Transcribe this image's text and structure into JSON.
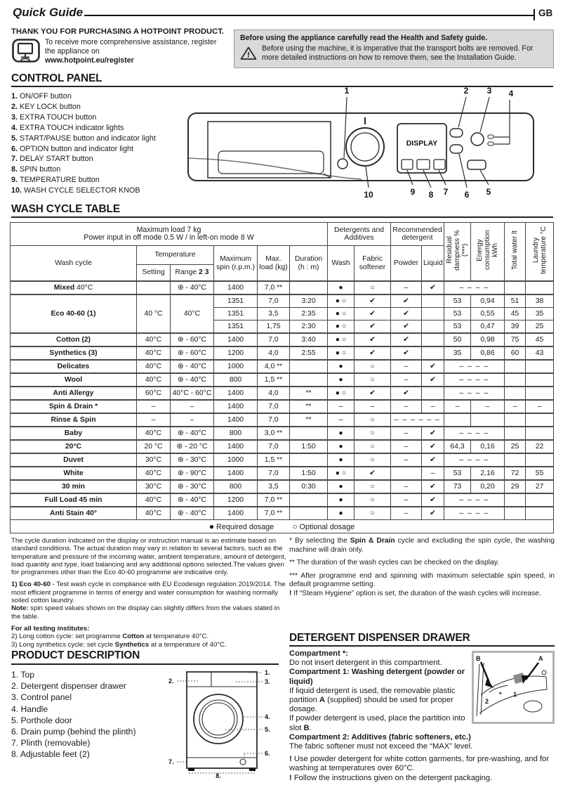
{
  "page": {
    "title": "Quick Guide",
    "lang": "GB"
  },
  "intro": {
    "thanks": "THANK YOU FOR PURCHASING A HOTPOINT PRODUCT.",
    "register_line": "To receive more comprehensive assistance, register the appliance on",
    "register_url": "www.hotpoint.eu/register"
  },
  "safety": {
    "title": "Before using the appliance carefully read the Health and Safety guide.",
    "body": "Before using the machine, it is imperative that the transport bolts are removed. For more detailed instructions on how to remove them, see the Installation Guide."
  },
  "sections": {
    "control_panel": "CONTROL PANEL",
    "wash_table": "WASH CYCLE TABLE",
    "product": "PRODUCT DESCRIPTION",
    "dispenser": "DETERGENT DISPENSER DRAWER"
  },
  "control_panel": {
    "items": [
      {
        "num": "1.",
        "label": "ON/OFF button"
      },
      {
        "num": "2.",
        "label": "KEY LOCK button"
      },
      {
        "num": "3.",
        "label": "EXTRA TOUCH button"
      },
      {
        "num": "4.",
        "label": "EXTRA TOUCH indicator lights"
      },
      {
        "num": "5.",
        "label": "START/PAUSE button and indicator light"
      },
      {
        "num": "6.",
        "label": "OPTION button and indicator light"
      },
      {
        "num": "7.",
        "label": "DELAY START button"
      },
      {
        "num": "8.",
        "label": "SPIN button"
      },
      {
        "num": "9.",
        "label": "TEMPERATURE button"
      },
      {
        "num": "10.",
        "label": "WASH CYCLE SELECTOR KNOB"
      }
    ],
    "display_label": "DISPLAY",
    "callouts": {
      "n1": "1",
      "n2": "2",
      "n3": "3",
      "n4": "4",
      "n5": "5",
      "n6": "6",
      "n7": "7",
      "n8": "8",
      "n9": "9",
      "n10": "10"
    }
  },
  "wash_table": {
    "meta1": "Maximum load 7 kg",
    "meta2": "Power input in off  mode 0.5 W / in left-on mode 8 W",
    "headers": {
      "wash_cycle": "Wash cycle",
      "temperature": "Temperature",
      "setting": "Setting",
      "range_label": "Range ",
      "range_bold": "2 3",
      "max_spin": "Maximum spin (r.p.m.)",
      "max_load": "Max. load (kg)",
      "duration": "Duration (h : m)",
      "detergents": "Detergents and Additives",
      "wash": "Wash",
      "softener": "Fabric softener",
      "recommended": "Recommended detergent",
      "powder": "Powder",
      "liquid": "Liquid",
      "residual": "Residual dampness % (***)",
      "energy": "Energy consumption kWh",
      "water": "Total water lt",
      "laundry": "Laundry temperature °C"
    },
    "rows": [
      {
        "g": true,
        "cells": [
          {
            "t": "Mixed",
            "t2": " 40°C",
            "cls": "name"
          },
          "",
          "⊛ - 40°C",
          "1400",
          "7,0 **",
          "",
          "●",
          "○",
          "–",
          "✔",
          {
            "t": "– – – –",
            "cs": 2,
            "cls": "dash"
          },
          "",
          ""
        ]
      },
      {
        "g": true,
        "cells": [
          {
            "t": "Eco 40-60 (1)",
            "cls": "name",
            "rs": 3
          },
          {
            "t": "40 °C",
            "rs": 3
          },
          {
            "t": "40°C",
            "rs": 3
          },
          "1351",
          "7,0",
          "3:20",
          "● ○",
          "✔",
          "✔",
          "",
          "53",
          "0,94",
          "51",
          "38"
        ]
      },
      {
        "cells": [
          "1351",
          "3,5",
          "2:35",
          "● ○",
          "✔",
          "✔",
          "",
          "53",
          "0,55",
          "45",
          "35"
        ]
      },
      {
        "cells": [
          "1351",
          "1,75",
          "2:30",
          "● ○",
          "✔",
          "✔",
          "",
          "53",
          "0,47",
          "39",
          "25"
        ]
      },
      {
        "g": true,
        "cells": [
          {
            "t": "Cotton (2)",
            "cls": "name"
          },
          "40°C",
          "⊛ - 60°C",
          "1400",
          "7,0",
          "3:40",
          "● ○",
          "✔",
          "✔",
          "",
          "50",
          "0,98",
          "75",
          "45"
        ]
      },
      {
        "g": true,
        "cells": [
          {
            "t": "Synthetics (3)",
            "cls": "name"
          },
          "40°C",
          "⊛ - 60°C",
          "1200",
          "4,0",
          "2:55",
          "● ○",
          "✔",
          "✔",
          "",
          "35",
          "0,86",
          "60",
          "43"
        ]
      },
      {
        "g": true,
        "cells": [
          {
            "t": "Delicates",
            "cls": "name"
          },
          "40°C",
          "⊛ - 40°C",
          "1000",
          "4,0 **",
          "",
          "●",
          "○",
          "–",
          "✔",
          {
            "t": "– – – –",
            "cs": 2,
            "cls": "dash"
          },
          "",
          ""
        ]
      },
      {
        "g": true,
        "cells": [
          {
            "t": "Wool",
            "cls": "name"
          },
          "40°C",
          "⊛ - 40°C",
          "800",
          "1,5 **",
          "",
          "●",
          "○",
          "–",
          "✔",
          {
            "t": "– – – –",
            "cs": 2,
            "cls": "dash"
          },
          "",
          ""
        ]
      },
      {
        "g": true,
        "cells": [
          {
            "t": "Anti Allergy",
            "cls": "name"
          },
          "60°C",
          "40°C - 60°C",
          "1400",
          "4,0",
          "**",
          "● ○",
          "✔",
          "✔",
          "",
          {
            "t": "– – – –",
            "cs": 2,
            "cls": "dash"
          },
          "",
          ""
        ]
      },
      {
        "g": true,
        "cells": [
          {
            "t": "Spin & Drain *",
            "cls": "name"
          },
          "–",
          "–",
          "1400",
          "7,0",
          "**",
          "–",
          "–",
          "–",
          "–",
          "–",
          "–",
          "–",
          "–"
        ]
      },
      {
        "g": true,
        "cells": [
          {
            "t": "Rinse & Spin",
            "cls": "name"
          },
          "–",
          "–",
          "1400",
          "7,0",
          "**",
          "–",
          "○",
          {
            "t": "– – – – – –",
            "cs": 2,
            "cls": "dash"
          },
          "",
          "",
          "",
          ""
        ]
      },
      {
        "g": true,
        "cells": [
          {
            "t": "Baby",
            "cls": "name"
          },
          "40°C",
          "⊛ - 40°C",
          "800",
          "3,0 **",
          "",
          "●",
          "○",
          "–",
          "✔",
          {
            "t": "– – – –",
            "cs": 2,
            "cls": "dash"
          },
          "",
          ""
        ]
      },
      {
        "g": true,
        "cells": [
          {
            "t": "20°C",
            "cls": "name"
          },
          "20 °C",
          "⊛ - 20 °C",
          "1400",
          "7,0",
          "1:50",
          "●",
          "○",
          "–",
          "✔",
          "64,3",
          "0,16",
          "25",
          "22"
        ]
      },
      {
        "g": true,
        "cells": [
          {
            "t": "Duvet",
            "cls": "name"
          },
          "30°C",
          "⊛ - 30°C",
          "1000",
          "1,5 **",
          "",
          "●",
          "○",
          "–",
          "✔",
          {
            "t": "– – – –",
            "cs": 2,
            "cls": "dash"
          },
          "",
          ""
        ]
      },
      {
        "g": true,
        "cells": [
          {
            "t": "White",
            "cls": "name"
          },
          "40°C",
          "⊛ - 90°C",
          "1400",
          "7,0",
          "1:50",
          "● ○",
          "✔",
          "",
          "–",
          "53",
          "2,16",
          "72",
          "55"
        ]
      },
      {
        "g": true,
        "cells": [
          {
            "t": "30 min",
            "cls": "name"
          },
          "30°C",
          "⊛ - 30°C",
          "800",
          "3,5",
          "0:30",
          "●",
          "○",
          "–",
          "✔",
          "73",
          "0,20",
          "29",
          "27"
        ]
      },
      {
        "g": true,
        "cells": [
          {
            "t": "Full Load 45 min",
            "cls": "name"
          },
          "40°C",
          "⊛ - 40°C",
          "1200",
          "7,0 **",
          "",
          "●",
          "○",
          "–",
          "✔",
          {
            "t": "– – – –",
            "cs": 2,
            "cls": "dash"
          },
          "",
          ""
        ]
      },
      {
        "g": true,
        "cells": [
          {
            "t": "Anti Stain 40°",
            "cls": "name"
          },
          "40°C",
          "⊛ - 40°C",
          "1400",
          "7,0 **",
          "",
          "●",
          "○",
          "–",
          "✔",
          {
            "t": "– – – –",
            "cs": 2,
            "cls": "dash"
          },
          "",
          ""
        ]
      }
    ],
    "legend_dot_required": "●",
    "legend_required": " Required dosage",
    "legend_dot_optional": "○",
    "legend_optional": " Optional dosage"
  },
  "notes_left": [
    {
      "s": [
        {
          "t": "The cycle duration indicated on the display or instruction manual is an estimate based on standard conditions. The actual duration may vary in relation to several factors, such as the temperature and pressure of the incoming water, ambient temperature, amount of detergent, load quantity and type, load balancing and any additional options selected.The values given for programmes other than the Eco 40-60 programme are indicative only."
        }
      ]
    },
    {
      "mt": true,
      "s": [
        {
          "b": "1) Eco 40-60"
        },
        {
          "t": " - Test wash cycle in compliance with EU Ecodesign regulation 2019/2014. The most efficient programme in terms of energy and water consumption for washing normally soiled cotton laundry."
        }
      ]
    },
    {
      "s": [
        {
          "b": "Note:"
        },
        {
          "t": " spin speed values shown on the display can slightly differs from the values stated in the table."
        }
      ]
    },
    {
      "mt": true,
      "s": [
        {
          "b": "For all testing institutes:"
        }
      ]
    },
    {
      "s": [
        {
          "t": "2)  Long cotton cycle: set programme "
        },
        {
          "b": "Cotton"
        },
        {
          "t": " at temperature 40°C."
        }
      ]
    },
    {
      "s": [
        {
          "t": "3)  Long synthetics cycle: set cycle "
        },
        {
          "b": "Synthetics"
        },
        {
          "t": " at a temperature of 40°C."
        }
      ]
    }
  ],
  "notes_right": [
    {
      "s": [
        {
          "t": "* By selecting the "
        },
        {
          "b": "Spin & Drain"
        },
        {
          "t": " cycle and excluding the spin cycle, the washing machine will drain only."
        }
      ]
    },
    {
      "mt": true,
      "s": [
        {
          "t": "**  The duration of the wash cycles can be checked on the display."
        }
      ]
    },
    {
      "mt": true,
      "s": [
        {
          "t": "*** After programme end and spinning with maximum selectable spin speed, in default programme setting."
        }
      ]
    },
    {
      "s": [
        {
          "b": "!"
        },
        {
          "t": " If “Steam Hygiene” option is set, the duration of the wash cycles will increase."
        }
      ]
    }
  ],
  "product": {
    "items": [
      "1. Top",
      "2. Detergent dispenser drawer",
      "3. Control panel",
      "4. Handle",
      "5. Porthole door",
      "6. Drain pump (behind the plinth)",
      "7. Plinth (removable)",
      "8. Adjustable feet (2)"
    ],
    "figure_callouts": [
      "1.",
      "2.",
      "3.",
      "4.",
      "5.",
      "6.",
      "7.",
      "8."
    ]
  },
  "dispenser": {
    "paras": [
      {
        "s": [
          {
            "b": "Compartment *:"
          }
        ]
      },
      {
        "s": [
          {
            "t": "Do not insert detergent in this compartment."
          }
        ]
      },
      {
        "s": [
          {
            "b": "Compartment 1: Washing detergent (powder or liquid)"
          }
        ]
      },
      {
        "s": [
          {
            "t": "If liquid detergent is used, the removable plastic partition "
          },
          {
            "b": "A"
          },
          {
            "t": " (supplied) should be used for proper dosage."
          }
        ]
      },
      {
        "s": [
          {
            "t": "If powder detergent is used, place the partition into slot "
          },
          {
            "b": "B"
          },
          {
            "t": "."
          }
        ]
      },
      {
        "s": [
          {
            "b": "Compartment 2: Additives (fabric softeners, etc.)"
          }
        ]
      },
      {
        "s": [
          {
            "t": "The fabric softener must not exceed the “MAX” level."
          }
        ]
      },
      {
        "mt": true,
        "s": [
          {
            "b": "! "
          },
          {
            "t": "Use powder detergent for white cotton garments, for pre-washing, and for washing at temperatures over 60°C."
          }
        ]
      },
      {
        "s": [
          {
            "b": "! "
          },
          {
            "t": "Follow the instructions given on the detergent packaging."
          }
        ]
      }
    ],
    "figure": {
      "label_a": "A",
      "label_b": "B",
      "comp_1": "1",
      "comp_2": "2",
      "comp_star": "*"
    }
  }
}
